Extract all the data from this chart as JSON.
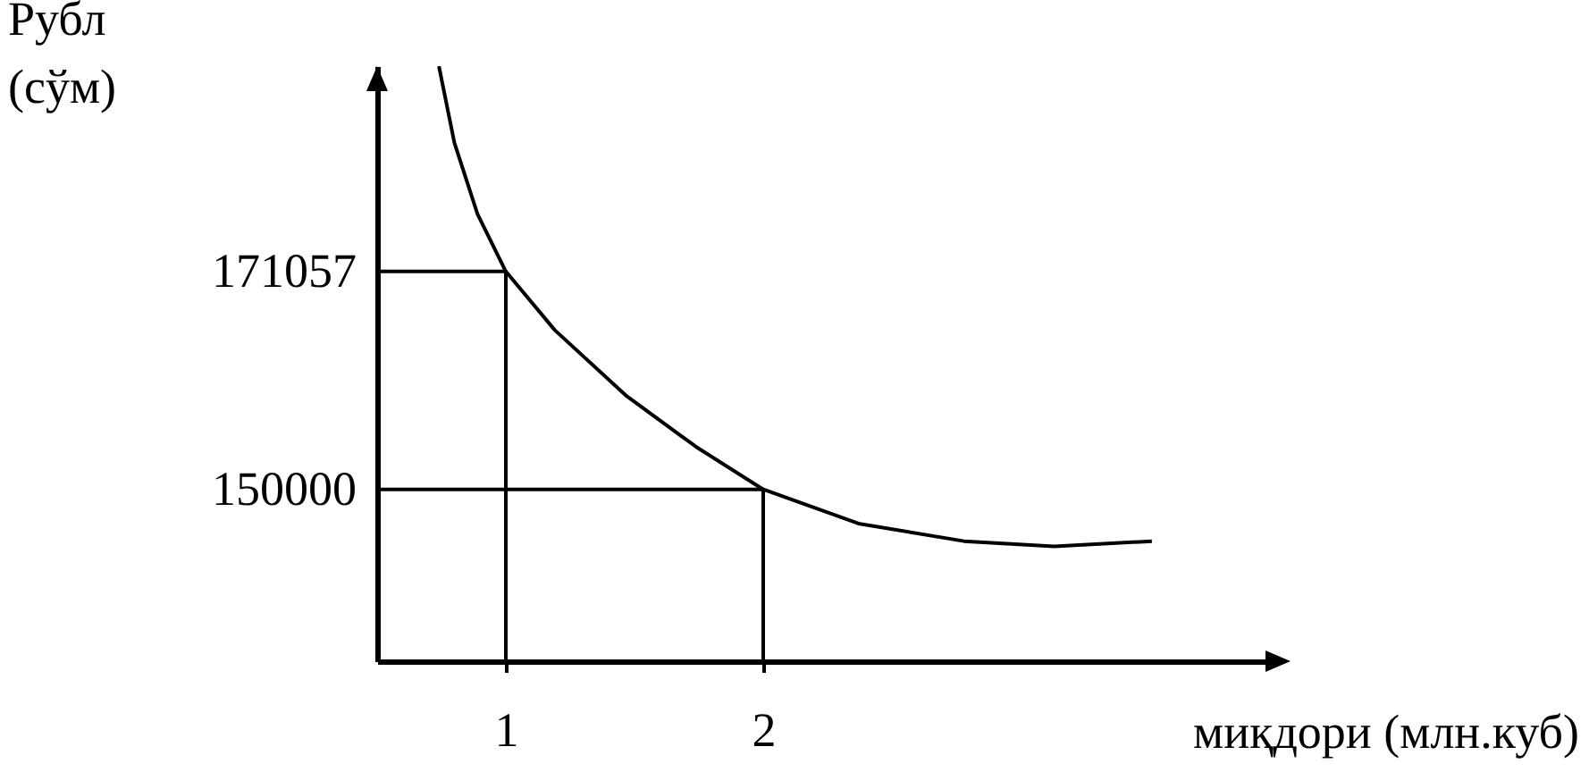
{
  "chart_data": {
    "type": "line",
    "xlabel": "миқдори (млн.куб)",
    "ylabel": "Рубл\n(сўм)",
    "x": [
      0.74,
      0.8,
      0.89,
      1,
      1.19,
      1.47,
      1.74,
      2,
      2.37,
      2.78,
      3.13,
      3.51
    ],
    "series": [
      {
        "color": "#000000",
        "values": [
          190900,
          183500,
          176600,
          171057,
          165400,
          159000,
          154100,
          150000,
          146700,
          145000,
          144500,
          145000
        ]
      },
      {
        "type": "line",
        "color": "#000000",
        "x": [
          0.5,
          1,
          1
        ],
        "values": [
          171057,
          171057,
          133400
        ]
      },
      {
        "type": "line",
        "color": "#000000",
        "x": [
          0.5,
          2,
          2
        ],
        "values": [
          150000,
          150000,
          133400
        ]
      }
    ],
    "xlim": [
      0.5,
      4.0
    ],
    "xticks": [
      1,
      2
    ],
    "ylim": [
      133400,
      190900
    ],
    "yticks": [
      150000,
      171057
    ],
    "marker": "none",
    "line_style": "solid"
  }
}
